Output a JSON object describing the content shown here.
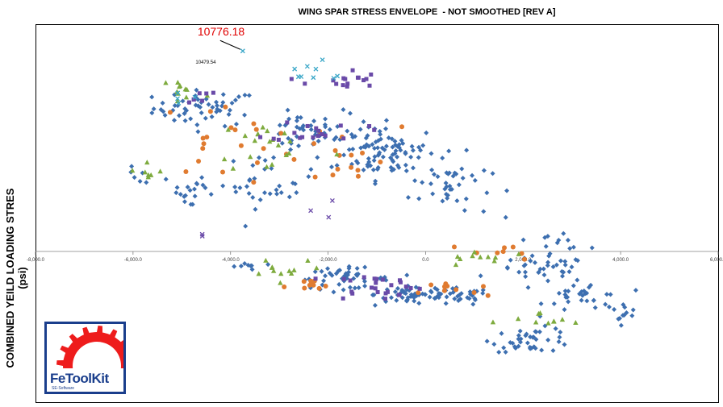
{
  "chart_data": {
    "type": "scatter",
    "title": "WING SPAR STRESS ENVELOPE  - NOT SMOOTHED [REV A]",
    "xlabel": "",
    "ylabel": "COMBINED YEILD LOADING STRES (psi)",
    "xlim": [
      -8000,
      6000
    ],
    "ylim": [
      -12000,
      12000
    ],
    "x_ticks": [
      "-8,000.0",
      "-6,000.0",
      "-4,000.0",
      "-2,000.0",
      "0.0",
      "2,000.0",
      "4,000.0",
      "6,000.0"
    ],
    "grid": false,
    "legend": "none",
    "annotations": [
      {
        "text": "10776.18",
        "x": -3750,
        "y": 10776.18,
        "color": "#e00000"
      },
      {
        "text": "10479.54",
        "x": -4750,
        "y": 10479.54,
        "color": "#000000"
      }
    ],
    "series": [
      {
        "marker": "diamond",
        "color": "#3d6fb0",
        "clusters": [
          {
            "cx": -4500,
            "cy": 7700,
            "sx": 900,
            "sy": 800,
            "n": 55
          },
          {
            "cx": -2600,
            "cy": 6400,
            "sx": 600,
            "sy": 800,
            "n": 35
          },
          {
            "cx": -1300,
            "cy": 5800,
            "sx": 550,
            "sy": 1400,
            "n": 45
          },
          {
            "cx": -600,
            "cy": 5300,
            "sx": 700,
            "sy": 1200,
            "n": 55
          },
          {
            "cx": 500,
            "cy": 3500,
            "sx": 700,
            "sy": 1400,
            "n": 40
          },
          {
            "cx": -3200,
            "cy": 3800,
            "sx": 800,
            "sy": 1200,
            "n": 35
          },
          {
            "cx": -4800,
            "cy": 3200,
            "sx": 500,
            "sy": 900,
            "n": 18
          },
          {
            "cx": -1700,
            "cy": -2200,
            "sx": 800,
            "sy": 700,
            "n": 45
          },
          {
            "cx": -200,
            "cy": -3500,
            "sx": 700,
            "sy": 800,
            "n": 50
          },
          {
            "cx": 700,
            "cy": -3700,
            "sx": 500,
            "sy": 600,
            "n": 25
          },
          {
            "cx": 2400,
            "cy": -1500,
            "sx": 800,
            "sy": 900,
            "n": 35
          },
          {
            "cx": 3300,
            "cy": -3600,
            "sx": 700,
            "sy": 1100,
            "n": 30
          },
          {
            "cx": 2200,
            "cy": -7200,
            "sx": 700,
            "sy": 800,
            "n": 40
          },
          {
            "cx": 4000,
            "cy": -5000,
            "sx": 300,
            "sy": 700,
            "n": 12
          },
          {
            "cx": 2700,
            "cy": 600,
            "sx": 500,
            "sy": 400,
            "n": 12
          },
          {
            "cx": -5900,
            "cy": 3900,
            "sx": 250,
            "sy": 500,
            "n": 6
          },
          {
            "cx": -3800,
            "cy": -1300,
            "sx": 300,
            "sy": 500,
            "n": 8
          }
        ]
      },
      {
        "marker": "circle",
        "color": "#e07b30",
        "clusters": [
          {
            "cx": -4000,
            "cy": 6000,
            "sx": 1300,
            "sy": 1700,
            "n": 22
          },
          {
            "cx": -1700,
            "cy": 5000,
            "sx": 1000,
            "sy": 1400,
            "n": 14
          },
          {
            "cx": -2400,
            "cy": -2900,
            "sx": 400,
            "sy": 500,
            "n": 10
          },
          {
            "cx": 600,
            "cy": -3200,
            "sx": 600,
            "sy": 700,
            "n": 10
          },
          {
            "cx": 1600,
            "cy": -100,
            "sx": 1000,
            "sy": 500,
            "n": 8
          }
        ]
      },
      {
        "marker": "triangle",
        "color": "#7eab3e",
        "clusters": [
          {
            "cx": -5000,
            "cy": 8600,
            "sx": 500,
            "sy": 900,
            "n": 12
          },
          {
            "cx": -5800,
            "cy": 4300,
            "sx": 350,
            "sy": 600,
            "n": 7
          },
          {
            "cx": -3100,
            "cy": 5700,
            "sx": 1000,
            "sy": 1300,
            "n": 20
          },
          {
            "cx": -2900,
            "cy": -1200,
            "sx": 700,
            "sy": 800,
            "n": 12
          },
          {
            "cx": 1200,
            "cy": -500,
            "sx": 800,
            "sy": 600,
            "n": 10
          },
          {
            "cx": 2400,
            "cy": -5800,
            "sx": 900,
            "sy": 700,
            "n": 10
          }
        ]
      },
      {
        "marker": "square",
        "color": "#6a4aa8",
        "clusters": [
          {
            "cx": -1700,
            "cy": 9200,
            "sx": 600,
            "sy": 500,
            "n": 16
          },
          {
            "cx": -2200,
            "cy": 6500,
            "sx": 800,
            "sy": 500,
            "n": 18
          },
          {
            "cx": -1000,
            "cy": -2800,
            "sx": 800,
            "sy": 900,
            "n": 25
          },
          {
            "cx": -4600,
            "cy": 8200,
            "sx": 400,
            "sy": 500,
            "n": 7
          }
        ]
      },
      {
        "marker": "x",
        "color": "#3aa7c8",
        "clusters": [
          {
            "cx": -2500,
            "cy": 9600,
            "sx": 1000,
            "sy": 500,
            "n": 9
          },
          {
            "cx": -5100,
            "cy": 8200,
            "sx": 300,
            "sy": 400,
            "n": 4
          }
        ]
      },
      {
        "marker": "x",
        "color": "#6a4aa8",
        "clusters": [
          {
            "cx": -2200,
            "cy": 2300,
            "sx": 300,
            "sy": 400,
            "n": 3
          },
          {
            "cx": -4700,
            "cy": 1000,
            "sx": 150,
            "sy": 300,
            "n": 2
          }
        ]
      }
    ]
  },
  "logo": {
    "name": "FeToolKit",
    "tagline": "SE-Software",
    "gear_color": "#ee1c1c",
    "border_color": "#1a3e8c"
  }
}
